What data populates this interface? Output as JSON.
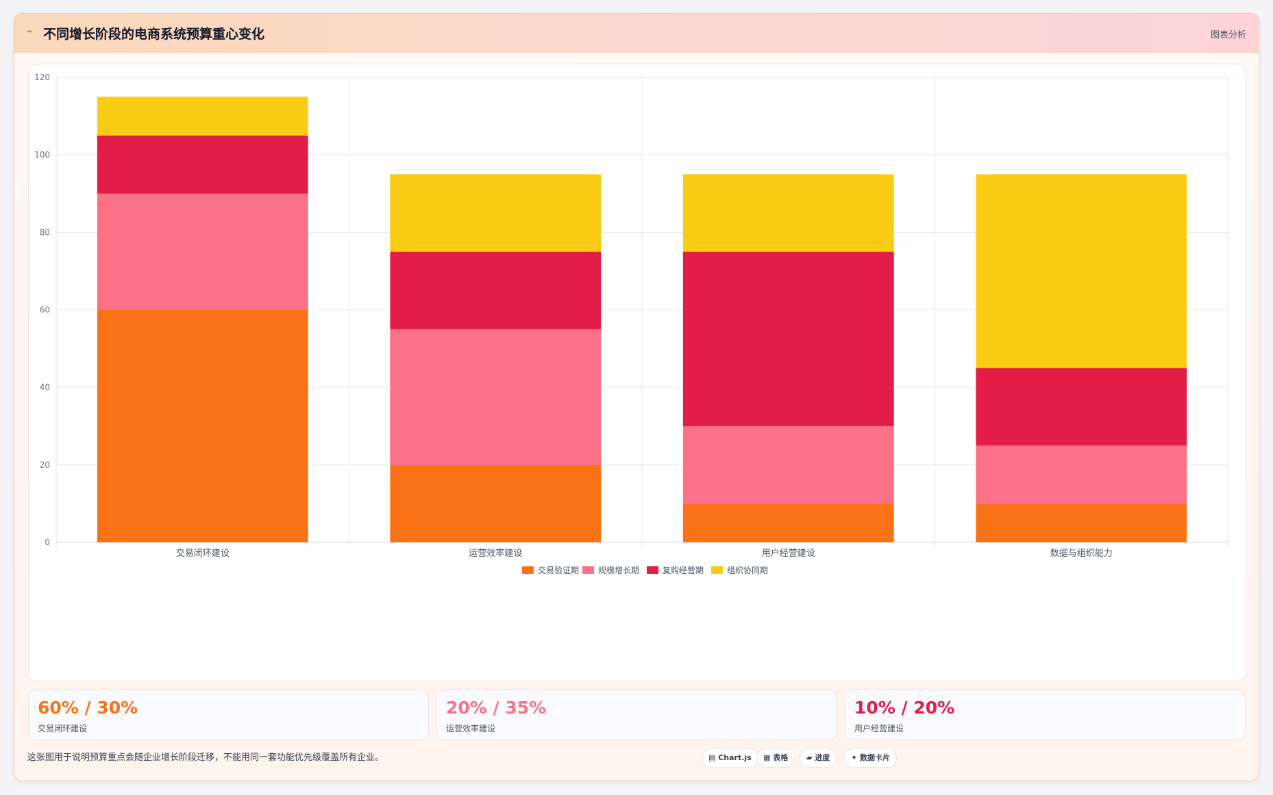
{
  "header": {
    "title_icon": "chart-icon",
    "title": "不同增长阶段的电商系统预算重心变化",
    "badge": "图表分析"
  },
  "chart_data": {
    "type": "bar",
    "stacked": true,
    "categories": [
      "交易闭环建设",
      "运营效率建设",
      "用户经营建设",
      "数据与组织能力"
    ],
    "series": [
      {
        "name": "交易验证期",
        "color": "#f97316",
        "values": [
          60,
          20,
          10,
          10
        ]
      },
      {
        "name": "规模增长期",
        "color": "#fb7185",
        "values": [
          30,
          35,
          20,
          15
        ]
      },
      {
        "name": "复购经营期",
        "color": "#e11d48",
        "values": [
          15,
          20,
          45,
          20
        ]
      },
      {
        "name": "组织协同期",
        "color": "#facc15",
        "values": [
          10,
          20,
          20,
          50
        ]
      }
    ],
    "ylim": [
      0,
      120
    ],
    "yticks": [
      0,
      20,
      40,
      60,
      80,
      100,
      120
    ],
    "grid": true,
    "legend": "bottom-center",
    "title": "",
    "xlabel": "",
    "ylabel": ""
  },
  "stats": [
    {
      "value": "60% / 30%",
      "label": "交易闭环建设",
      "color": "#f97316"
    },
    {
      "value": "20% / 35%",
      "label": "运营效率建设",
      "color": "#fb7185"
    },
    {
      "value": "10% / 20%",
      "label": "用户经营建设",
      "color": "#e11d48"
    }
  ],
  "footer": {
    "note": "这张图用于说明预算重点会随企业增长阶段迁移，不能用同一套功能优先级覆盖所有企业。",
    "chips": [
      "▤ Chart.js",
      "▦ 表格",
      "▰ 进度",
      "✦ 数据卡片"
    ]
  }
}
